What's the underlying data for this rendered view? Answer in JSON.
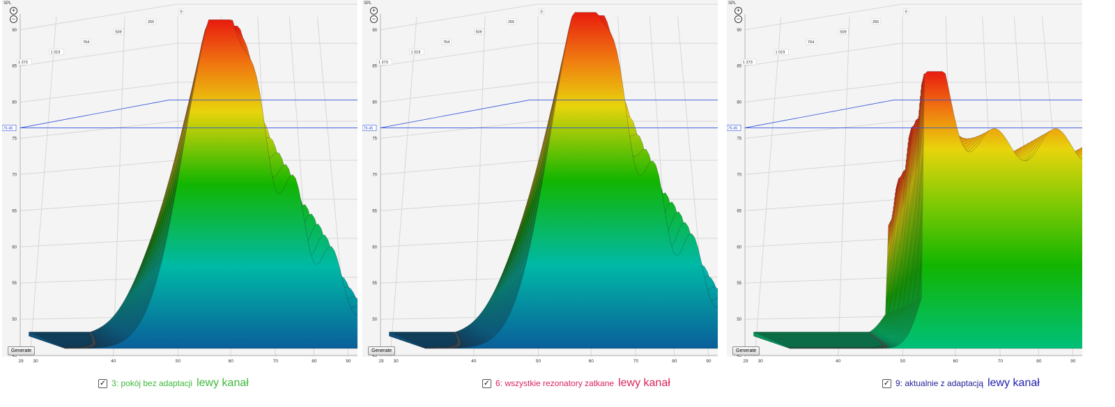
{
  "colors": {
    "panel1_caption": "#3cb93a",
    "panel2_caption": "#d9235a",
    "panel3_caption_main": "#1f1f99",
    "panel3_caption_channel": "#1f1fb0",
    "threshold_line": "#3050d8",
    "gradient": [
      "#e81b0f",
      "#f07a10",
      "#e8d40c",
      "#12b500",
      "#00b9a6",
      "#0a5f9a"
    ]
  },
  "axis": {
    "corner_label": "SPL",
    "marker_label": "76.45",
    "zoom_in_icon": "plus-circle-icon",
    "zoom_out_icon": "minus-circle-icon",
    "generate_label": "Generate"
  },
  "chart_data": [
    {
      "type": "area",
      "y_ticks": [
        "90",
        "85",
        "80",
        "75",
        "70",
        "65",
        "60",
        "55",
        "50",
        "45"
      ],
      "x_ticks": [
        "29",
        "30",
        "40",
        "50",
        "60",
        "70",
        "80",
        "90"
      ],
      "z_ticks": [
        "1 273",
        "1 019",
        "764",
        "509",
        "255",
        "0"
      ],
      "ylim": [
        45,
        92
      ],
      "xlim": [
        29,
        92
      ],
      "threshold": 76.45,
      "peak_hz": 56,
      "peak_db": 90.5,
      "caption": {
        "text": "3: pokój bez adaptacji",
        "channel": "lewy kanał"
      }
    },
    {
      "type": "area",
      "y_ticks": [
        "90",
        "85",
        "80",
        "75",
        "70",
        "65",
        "60",
        "55",
        "50",
        "45"
      ],
      "x_ticks": [
        "29",
        "30",
        "40",
        "50",
        "60",
        "70",
        "80",
        "90"
      ],
      "z_ticks": [
        "1 273",
        "1 019",
        "764",
        "509",
        "255",
        "0"
      ],
      "ylim": [
        45,
        92
      ],
      "xlim": [
        29,
        92
      ],
      "threshold": 76.45,
      "peak_hz": 57,
      "peak_db": 91.5,
      "caption": {
        "text": "6: wszystkie rezonatory zatkane",
        "channel": "lewy kanał"
      }
    },
    {
      "type": "area",
      "y_ticks": [
        "90",
        "85",
        "80",
        "75",
        "70",
        "65",
        "60",
        "55",
        "50",
        "45"
      ],
      "x_ticks": [
        "29",
        "30",
        "40",
        "50",
        "60",
        "70",
        "80",
        "90"
      ],
      "z_ticks": [
        "1 273",
        "1 019",
        "764",
        "509",
        "255",
        "0"
      ],
      "ylim": [
        45,
        92
      ],
      "xlim": [
        29,
        92
      ],
      "threshold": 76.45,
      "peak_hz": 65,
      "peak_db": 83.5,
      "caption": {
        "text": "9: aktualnie z adaptacją",
        "channel": "lewy kanał"
      }
    }
  ]
}
